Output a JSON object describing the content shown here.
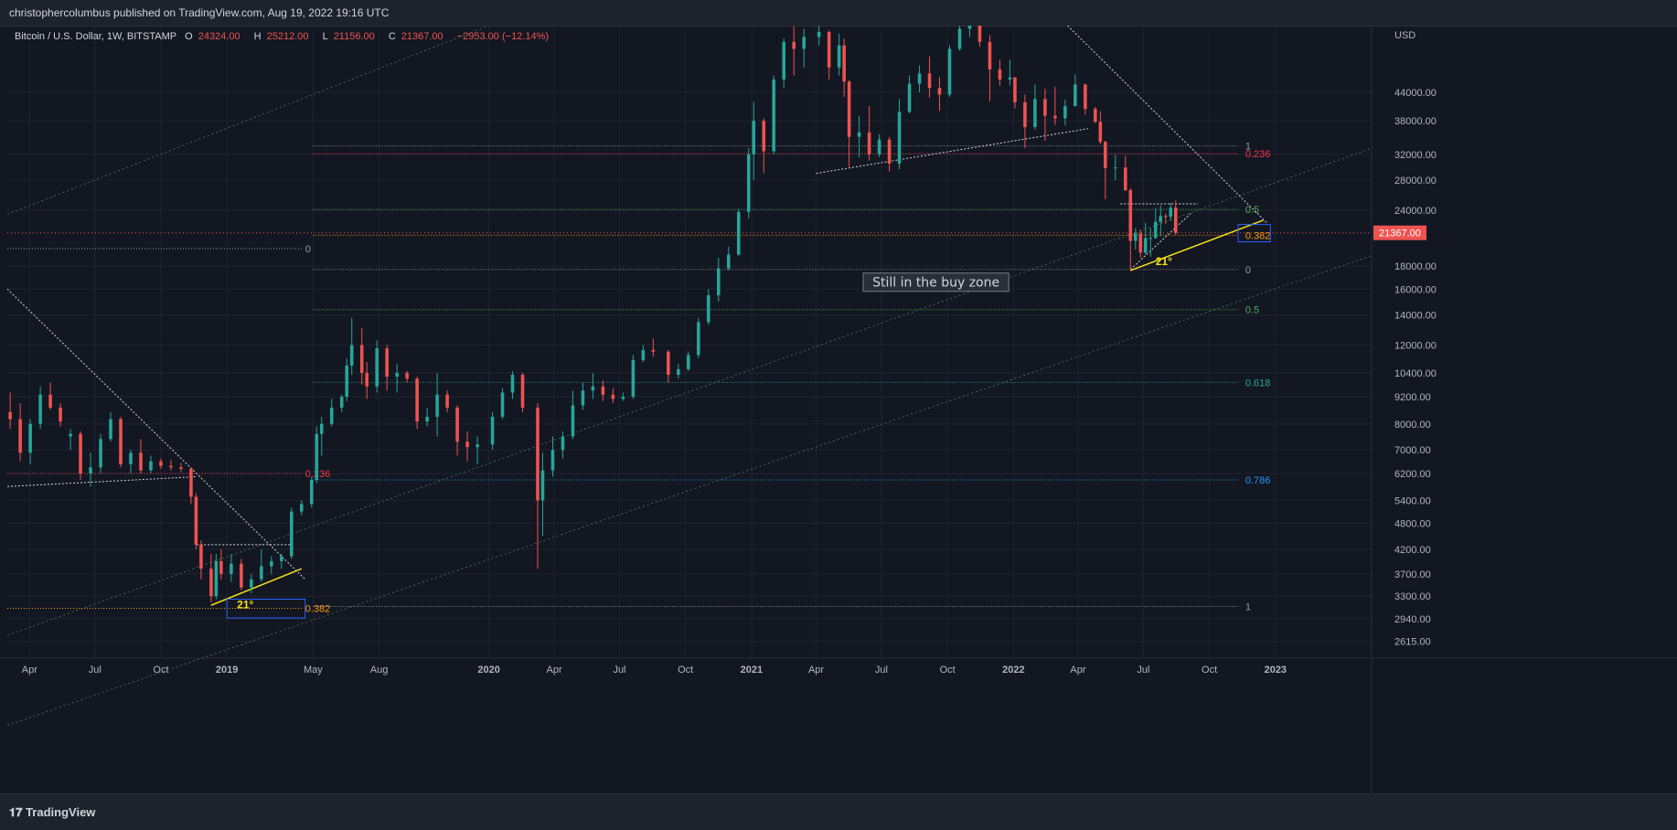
{
  "header": {
    "publisher": "christophercolumbus published on TradingView.com, Aug 19, 2022 19:16 UTC",
    "symbol": "Bitcoin / U.S. Dollar, 1W, BITSTAMP",
    "open_label": "O",
    "open": "24324.00",
    "high_label": "H",
    "high": "25212.00",
    "low_label": "L",
    "low": "21156.00",
    "close_label": "C",
    "close": "21367.00",
    "change": "−2953.00 (−12.14%)"
  },
  "footer": {
    "brand": "TradingView"
  },
  "colors": {
    "background": "#131722",
    "up": "#26a69a",
    "down": "#ef5350",
    "grid": "#1f2330",
    "axis_text": "#b2b5be",
    "yellow": "#f7e11b"
  },
  "chart_data": {
    "type": "candlestick",
    "title": "",
    "xlabel": "",
    "ylabel": "",
    "currency": "USD",
    "y_scale": "log",
    "ylim": [
      2400,
      62000
    ],
    "xlim": [
      "2018-03-01",
      "2023-05-15"
    ],
    "y_ticks": [
      "44000.00",
      "38000.00",
      "32000.00",
      "28000.00",
      "24000.00",
      "18000.00",
      "16000.00",
      "14000.00",
      "12000.00",
      "10400.00",
      "9200.00",
      "8000.00",
      "7000.00",
      "6200.00",
      "5400.00",
      "4800.00",
      "4200.00",
      "3700.00",
      "3300.00",
      "2940.00",
      "2615.00"
    ],
    "x_ticks": [
      {
        "label": "Apr",
        "date": "2018-04-01",
        "bold": false
      },
      {
        "label": "Jul",
        "date": "2018-07-01",
        "bold": false
      },
      {
        "label": "Oct",
        "date": "2018-10-01",
        "bold": false
      },
      {
        "label": "2019",
        "date": "2019-01-01",
        "bold": true
      },
      {
        "label": "May",
        "date": "2019-05-01",
        "bold": false
      },
      {
        "label": "Aug",
        "date": "2019-08-01",
        "bold": false
      },
      {
        "label": "2020",
        "date": "2020-01-01",
        "bold": true
      },
      {
        "label": "Apr",
        "date": "2020-04-01",
        "bold": false
      },
      {
        "label": "Jul",
        "date": "2020-07-01",
        "bold": false
      },
      {
        "label": "Oct",
        "date": "2020-10-01",
        "bold": false
      },
      {
        "label": "2021",
        "date": "2021-01-01",
        "bold": true
      },
      {
        "label": "Apr",
        "date": "2021-04-01",
        "bold": false
      },
      {
        "label": "Jul",
        "date": "2021-07-01",
        "bold": false
      },
      {
        "label": "Oct",
        "date": "2021-10-01",
        "bold": false
      },
      {
        "label": "2022",
        "date": "2022-01-01",
        "bold": true
      },
      {
        "label": "Apr",
        "date": "2022-04-01",
        "bold": false
      },
      {
        "label": "Jul",
        "date": "2022-07-01",
        "bold": false
      },
      {
        "label": "Oct",
        "date": "2022-10-01",
        "bold": false
      },
      {
        "label": "2023",
        "date": "2023-01-01",
        "bold": true
      }
    ],
    "last_price": "21367.00",
    "candles": [
      [
        "2018-03-05",
        8500,
        9400,
        7800,
        8200
      ],
      [
        "2018-03-19",
        8200,
        8900,
        6600,
        6900
      ],
      [
        "2018-04-02",
        6900,
        8200,
        6500,
        8000
      ],
      [
        "2018-04-16",
        8000,
        9700,
        7800,
        9300
      ],
      [
        "2018-04-30",
        9300,
        9900,
        8600,
        8700
      ],
      [
        "2018-05-14",
        8700,
        8900,
        7900,
        8100
      ],
      [
        "2018-05-28",
        7500,
        7800,
        7000,
        7600
      ],
      [
        "2018-06-11",
        7600,
        7700,
        6000,
        6200
      ],
      [
        "2018-06-25",
        6200,
        6900,
        5800,
        6400
      ],
      [
        "2018-07-09",
        6400,
        7600,
        6200,
        7400
      ],
      [
        "2018-07-23",
        7400,
        8500,
        7300,
        8200
      ],
      [
        "2018-08-06",
        8200,
        8300,
        6400,
        6500
      ],
      [
        "2018-08-20",
        6500,
        7000,
        6200,
        6900
      ],
      [
        "2018-09-03",
        6900,
        7400,
        6200,
        6300
      ],
      [
        "2018-09-17",
        6300,
        6800,
        6200,
        6600
      ],
      [
        "2018-10-01",
        6600,
        6700,
        6350,
        6450
      ],
      [
        "2018-10-15",
        6450,
        6650,
        6300,
        6400
      ],
      [
        "2018-10-29",
        6400,
        6550,
        6250,
        6350
      ],
      [
        "2018-11-12",
        6350,
        6400,
        5300,
        5500
      ],
      [
        "2018-11-19",
        5500,
        5600,
        4200,
        4300
      ],
      [
        "2018-11-26",
        4300,
        4400,
        3600,
        3800
      ],
      [
        "2018-12-10",
        3800,
        4100,
        3200,
        3300
      ],
      [
        "2018-12-17",
        3300,
        4100,
        3250,
        3950
      ],
      [
        "2018-12-24",
        3950,
        4200,
        3600,
        3700
      ],
      [
        "2019-01-07",
        3700,
        4100,
        3550,
        3900
      ],
      [
        "2019-01-21",
        3900,
        4000,
        3400,
        3450
      ],
      [
        "2019-02-04",
        3450,
        3700,
        3350,
        3600
      ],
      [
        "2019-02-18",
        3600,
        4200,
        3550,
        3850
      ],
      [
        "2019-03-04",
        3850,
        4050,
        3700,
        3950
      ],
      [
        "2019-03-18",
        3950,
        4100,
        3800,
        4050
      ],
      [
        "2019-04-01",
        4050,
        5200,
        4000,
        5100
      ],
      [
        "2019-04-15",
        5100,
        5400,
        5000,
        5300
      ],
      [
        "2019-04-29",
        5300,
        6100,
        5200,
        6000
      ],
      [
        "2019-05-06",
        6000,
        7900,
        5900,
        7600
      ],
      [
        "2019-05-13",
        7600,
        8300,
        6800,
        8000
      ],
      [
        "2019-05-27",
        8000,
        9100,
        7900,
        8700
      ],
      [
        "2019-06-10",
        8700,
        9300,
        8500,
        9200
      ],
      [
        "2019-06-17",
        9200,
        11200,
        9000,
        10800
      ],
      [
        "2019-06-24",
        10800,
        13800,
        10300,
        12000
      ],
      [
        "2019-07-08",
        12000,
        13100,
        9800,
        10400
      ],
      [
        "2019-07-15",
        10400,
        11000,
        9100,
        9700
      ],
      [
        "2019-07-29",
        9700,
        12300,
        9400,
        11800
      ],
      [
        "2019-08-12",
        11800,
        12000,
        9500,
        10200
      ],
      [
        "2019-08-26",
        10200,
        10900,
        9400,
        10400
      ],
      [
        "2019-09-09",
        10400,
        10500,
        9900,
        10100
      ],
      [
        "2019-09-23",
        10100,
        10200,
        7800,
        8100
      ],
      [
        "2019-10-07",
        8100,
        8700,
        7900,
        8300
      ],
      [
        "2019-10-21",
        8300,
        10400,
        7500,
        9300
      ],
      [
        "2019-11-04",
        9300,
        9500,
        8500,
        8700
      ],
      [
        "2019-11-18",
        8700,
        8800,
        6800,
        7300
      ],
      [
        "2019-12-02",
        7300,
        7700,
        6600,
        7100
      ],
      [
        "2019-12-16",
        7100,
        7500,
        6500,
        7200
      ],
      [
        "2020-01-06",
        7200,
        8500,
        7000,
        8300
      ],
      [
        "2020-01-20",
        8300,
        9600,
        8200,
        9400
      ],
      [
        "2020-02-03",
        9400,
        10500,
        9100,
        10300
      ],
      [
        "2020-02-17",
        10300,
        10400,
        8500,
        8700
      ],
      [
        "2020-03-09",
        8700,
        8900,
        3800,
        5400
      ],
      [
        "2020-03-16",
        5400,
        6900,
        4500,
        6300
      ],
      [
        "2020-03-30",
        6300,
        7500,
        6100,
        7000
      ],
      [
        "2020-04-13",
        7000,
        7700,
        6700,
        7500
      ],
      [
        "2020-04-27",
        7500,
        9500,
        7400,
        8800
      ],
      [
        "2020-05-11",
        8800,
        9900,
        8600,
        9500
      ],
      [
        "2020-05-25",
        9500,
        10400,
        9100,
        9700
      ],
      [
        "2020-06-08",
        9700,
        10000,
        9000,
        9300
      ],
      [
        "2020-06-22",
        9300,
        9600,
        8900,
        9100
      ],
      [
        "2020-07-06",
        9100,
        9400,
        9000,
        9200
      ],
      [
        "2020-07-20",
        9200,
        11400,
        9100,
        11100
      ],
      [
        "2020-08-03",
        11100,
        12000,
        11000,
        11700
      ],
      [
        "2020-08-17",
        11700,
        12400,
        11300,
        11600
      ],
      [
        "2020-09-07",
        11600,
        11700,
        9900,
        10300
      ],
      [
        "2020-09-21",
        10300,
        10900,
        10100,
        10600
      ],
      [
        "2020-10-05",
        10600,
        11600,
        10500,
        11400
      ],
      [
        "2020-10-19",
        11400,
        13800,
        11200,
        13500
      ],
      [
        "2020-11-02",
        13500,
        16000,
        13300,
        15500
      ],
      [
        "2020-11-16",
        15500,
        18800,
        15000,
        17800
      ],
      [
        "2020-11-30",
        17800,
        19900,
        17600,
        19100
      ],
      [
        "2020-12-14",
        19100,
        24200,
        19000,
        23800
      ],
      [
        "2020-12-28",
        23800,
        33000,
        23000,
        32000
      ],
      [
        "2021-01-04",
        32000,
        41900,
        28000,
        38000
      ],
      [
        "2021-01-18",
        38000,
        38500,
        29000,
        32500
      ],
      [
        "2021-02-01",
        32500,
        48000,
        32000,
        47000
      ],
      [
        "2021-02-15",
        47000,
        58000,
        45000,
        57000
      ],
      [
        "2021-03-01",
        57000,
        61800,
        48000,
        55000
      ],
      [
        "2021-03-15",
        55000,
        61000,
        50000,
        58500
      ],
      [
        "2021-04-05",
        58500,
        64800,
        56000,
        60000
      ],
      [
        "2021-04-19",
        60000,
        60500,
        47000,
        50000
      ],
      [
        "2021-05-03",
        50000,
        59500,
        48000,
        56000
      ],
      [
        "2021-05-10",
        56000,
        58000,
        43000,
        46500
      ],
      [
        "2021-05-17",
        46500,
        46800,
        30000,
        35000
      ],
      [
        "2021-05-31",
        35000,
        39000,
        31500,
        35800
      ],
      [
        "2021-06-14",
        35800,
        41000,
        31000,
        32000
      ],
      [
        "2021-06-28",
        32000,
        35500,
        31500,
        34500
      ],
      [
        "2021-07-12",
        34500,
        35000,
        29300,
        30500
      ],
      [
        "2021-07-26",
        30500,
        42500,
        29600,
        39800
      ],
      [
        "2021-08-09",
        39800,
        48000,
        39500,
        46000
      ],
      [
        "2021-08-23",
        46000,
        50500,
        44000,
        48500
      ],
      [
        "2021-09-06",
        48500,
        52900,
        42800,
        45000
      ],
      [
        "2021-09-20",
        45000,
        47600,
        40000,
        43500
      ],
      [
        "2021-10-04",
        43500,
        56000,
        43000,
        55000
      ],
      [
        "2021-10-18",
        55000,
        67000,
        54500,
        61000
      ],
      [
        "2021-11-01",
        61000,
        66000,
        58500,
        64500
      ],
      [
        "2021-11-15",
        64500,
        65500,
        55600,
        57000
      ],
      [
        "2021-11-29",
        57000,
        59000,
        42000,
        49500
      ],
      [
        "2021-12-13",
        49500,
        52000,
        45500,
        47000
      ],
      [
        "2021-12-27",
        47000,
        52000,
        45600,
        47500
      ],
      [
        "2022-01-03",
        47500,
        47600,
        40500,
        41800
      ],
      [
        "2022-01-17",
        41800,
        43500,
        33000,
        36800
      ],
      [
        "2022-01-31",
        36800,
        45800,
        36300,
        42500
      ],
      [
        "2022-02-14",
        42500,
        44800,
        34300,
        39000
      ],
      [
        "2022-02-28",
        39000,
        45300,
        37200,
        38500
      ],
      [
        "2022-03-14",
        38500,
        42400,
        37100,
        41000
      ],
      [
        "2022-03-28",
        41000,
        48200,
        40900,
        45800
      ],
      [
        "2022-04-11",
        45800,
        46000,
        39200,
        40400
      ],
      [
        "2022-04-25",
        40400,
        40800,
        37600,
        37800
      ],
      [
        "2022-05-02",
        37800,
        39900,
        33700,
        34100
      ],
      [
        "2022-05-09",
        34100,
        34300,
        25400,
        29800
      ],
      [
        "2022-05-23",
        29800,
        31900,
        28000,
        29900
      ],
      [
        "2022-06-06",
        29900,
        31700,
        26500,
        26600
      ],
      [
        "2022-06-13",
        26600,
        26900,
        17600,
        20500
      ],
      [
        "2022-06-20",
        20500,
        21900,
        19600,
        21300
      ],
      [
        "2022-06-27",
        21300,
        21700,
        18800,
        19300
      ],
      [
        "2022-07-04",
        19300,
        22500,
        19100,
        20800
      ],
      [
        "2022-07-11",
        20800,
        21900,
        18900,
        20800
      ],
      [
        "2022-07-18",
        20800,
        24300,
        20700,
        22600
      ],
      [
        "2022-07-25",
        22600,
        24600,
        21000,
        23300
      ],
      [
        "2022-08-01",
        23300,
        23600,
        22400,
        23200
      ],
      [
        "2022-08-08",
        23200,
        24900,
        22700,
        24300
      ],
      [
        "2022-08-15",
        24324,
        25212,
        21156,
        21367
      ]
    ],
    "annotations": [
      {
        "type": "text-box",
        "text": "Still in the buy zone",
        "date": "2021-09-15",
        "price": 16500
      },
      {
        "type": "angle-label",
        "text": "21°",
        "date": "2019-01-15",
        "price": 3100
      },
      {
        "type": "angle-label",
        "text": "21°",
        "date": "2022-07-18",
        "price": 18100
      }
    ],
    "fib_levels_left": [
      {
        "label": "0",
        "price": 19700,
        "color": "#9598a1"
      },
      {
        "label": "0.236",
        "price": 6200,
        "color": "#f23645"
      },
      {
        "label": "0.382",
        "price": 3100,
        "color": "#ff9800"
      }
    ],
    "fib_levels_right": [
      {
        "label": "1",
        "price": 33400,
        "color": "#9598a1"
      },
      {
        "label": "0.236",
        "price": 32100,
        "color": "#f23645"
      },
      {
        "label": "0.5",
        "price": 24100,
        "color": "#4caf50"
      },
      {
        "label": "0.382",
        "price": 21100,
        "color": "#ff9800"
      },
      {
        "label": "0",
        "price": 17700,
        "color": "#9598a1"
      },
      {
        "label": "0.5",
        "price": 14400,
        "color": "#4caf50"
      },
      {
        "label": "0.618",
        "price": 9900,
        "color": "#26a69a"
      },
      {
        "label": "0.786",
        "price": 6000,
        "color": "#2196f3"
      },
      {
        "label": "1",
        "price": 3130,
        "color": "#9598a1"
      }
    ]
  }
}
